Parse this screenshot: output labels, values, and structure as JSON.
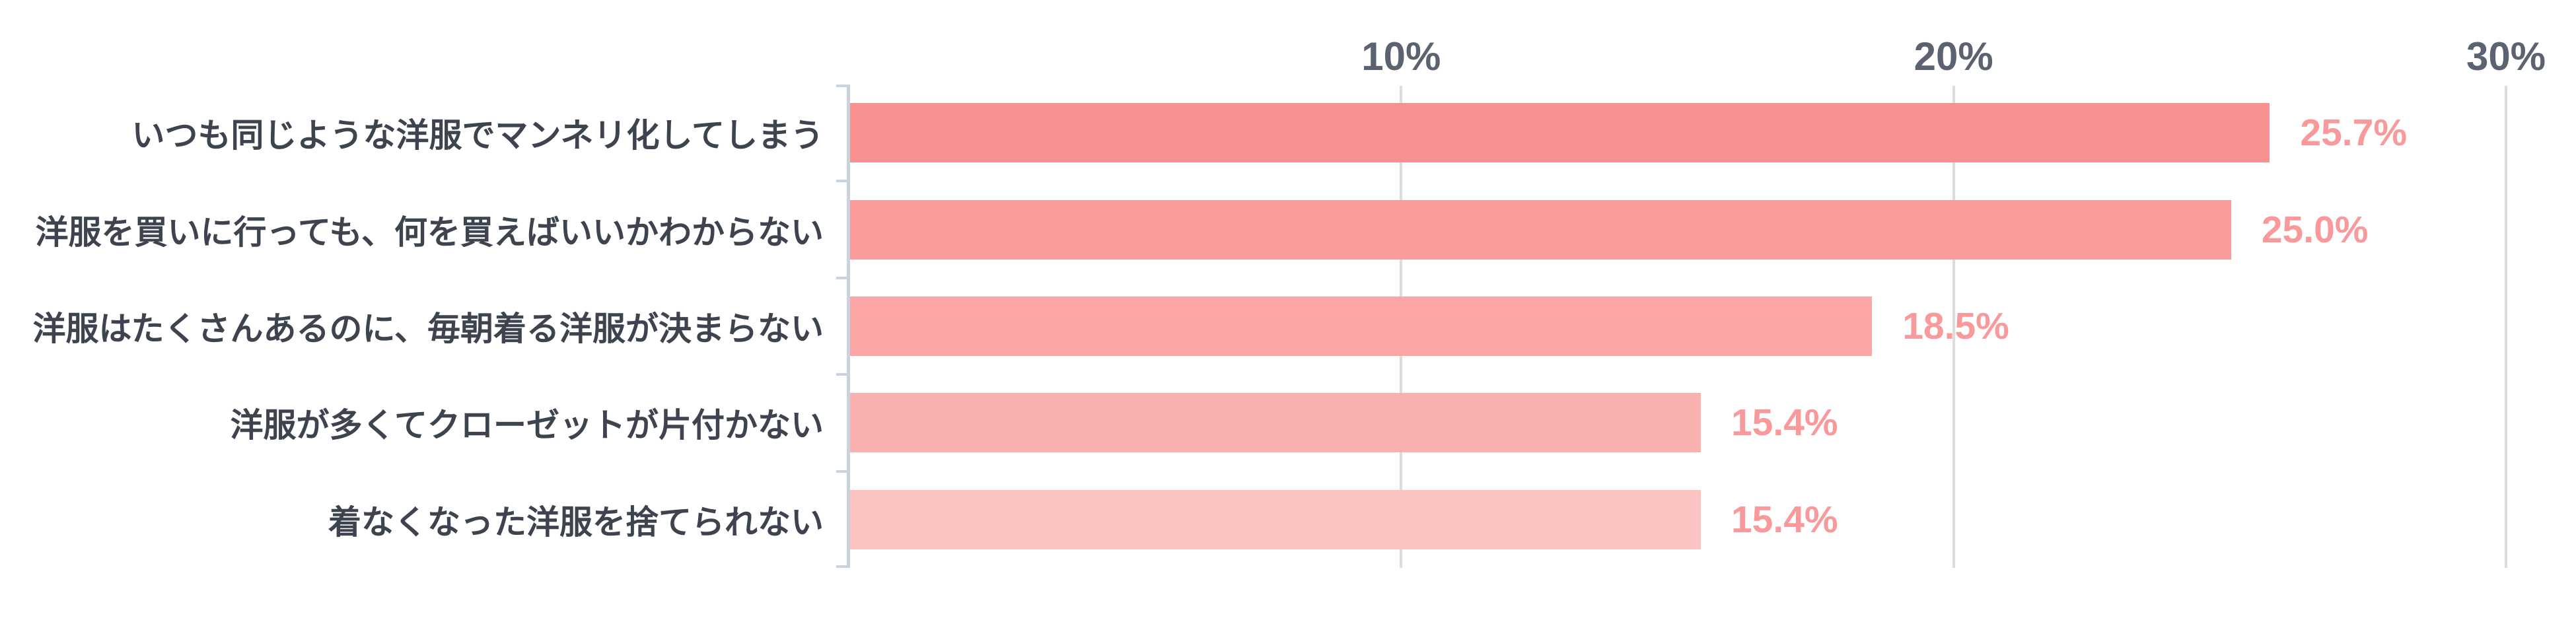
{
  "page": {
    "background_color": "#FFFFFF"
  },
  "chart_data": {
    "type": "bar",
    "orientation": "horizontal",
    "title": "",
    "categories": [
      "いつも同じような洋服でマンネリ化してしまう",
      "洋服を買いに行っても、何を買えばいいかわからない",
      "洋服はたくさんあるのに、毎朝着る洋服が決まらない",
      "洋服が多くてクローゼットが片付かない",
      "着なくなった洋服を捨てられない"
    ],
    "values": [
      25.7,
      25.0,
      18.5,
      15.4,
      15.4
    ],
    "value_labels": [
      "25.7%",
      "25.0%",
      "18.5%",
      "15.4%",
      "15.4%"
    ],
    "x_axis": {
      "position": "top",
      "tick_labels": [
        "10%",
        "20%",
        "30%"
      ],
      "tick_values": [
        10,
        20,
        30
      ],
      "min": 0,
      "max": 30
    },
    "grid": true,
    "legend": false,
    "colors": {
      "bars": [
        "#F99090",
        "#FA9B9B",
        "#FBA6A6",
        "#FBB0B0",
        "#FCC3C3"
      ],
      "value_label": "#F8999B",
      "axis_tick_label": "#5B6370",
      "category_label": "#3D444F",
      "gridline": "#DCDCDC",
      "axis_line": "#C9D2DD"
    }
  }
}
